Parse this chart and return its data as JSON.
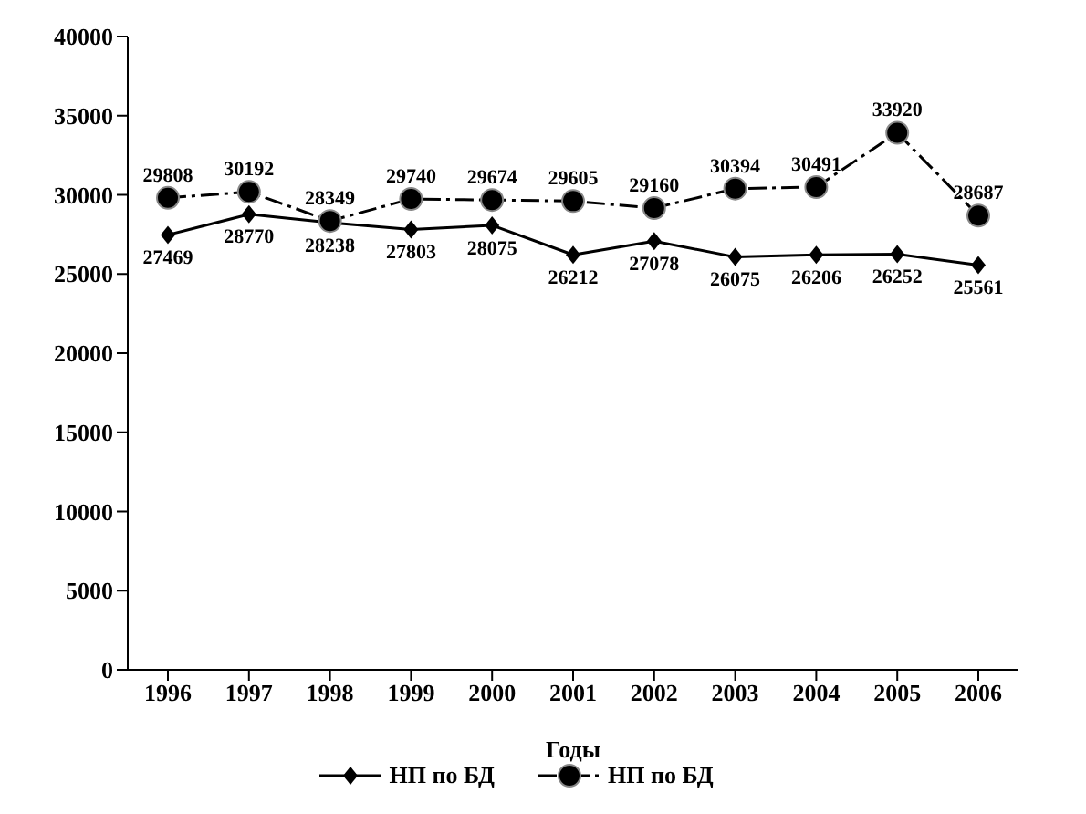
{
  "chart_data": {
    "type": "line",
    "xlabel": "Годы",
    "categories": [
      "1996",
      "1997",
      "1998",
      "1999",
      "2000",
      "2001",
      "2002",
      "2003",
      "2004",
      "2005",
      "2006"
    ],
    "series": [
      {
        "name": "НП по БД",
        "color": "#000000",
        "marker": "diamond",
        "line_style": "solid",
        "values": [
          27469,
          28770,
          28238,
          27803,
          28075,
          26212,
          27078,
          26075,
          26206,
          26252,
          25561
        ]
      },
      {
        "name": "НП по БД",
        "color": "#000000",
        "marker": "circle",
        "line_style": "dashed",
        "values": [
          29808,
          30192,
          28349,
          29740,
          29674,
          29605,
          29160,
          30394,
          30491,
          33920,
          28687
        ]
      }
    ],
    "ylim": [
      0,
      40000
    ],
    "yticks": [
      0,
      5000,
      10000,
      15000,
      20000,
      25000,
      30000,
      35000,
      40000
    ],
    "grid": false,
    "legend": "bottom",
    "data_labels": true
  }
}
